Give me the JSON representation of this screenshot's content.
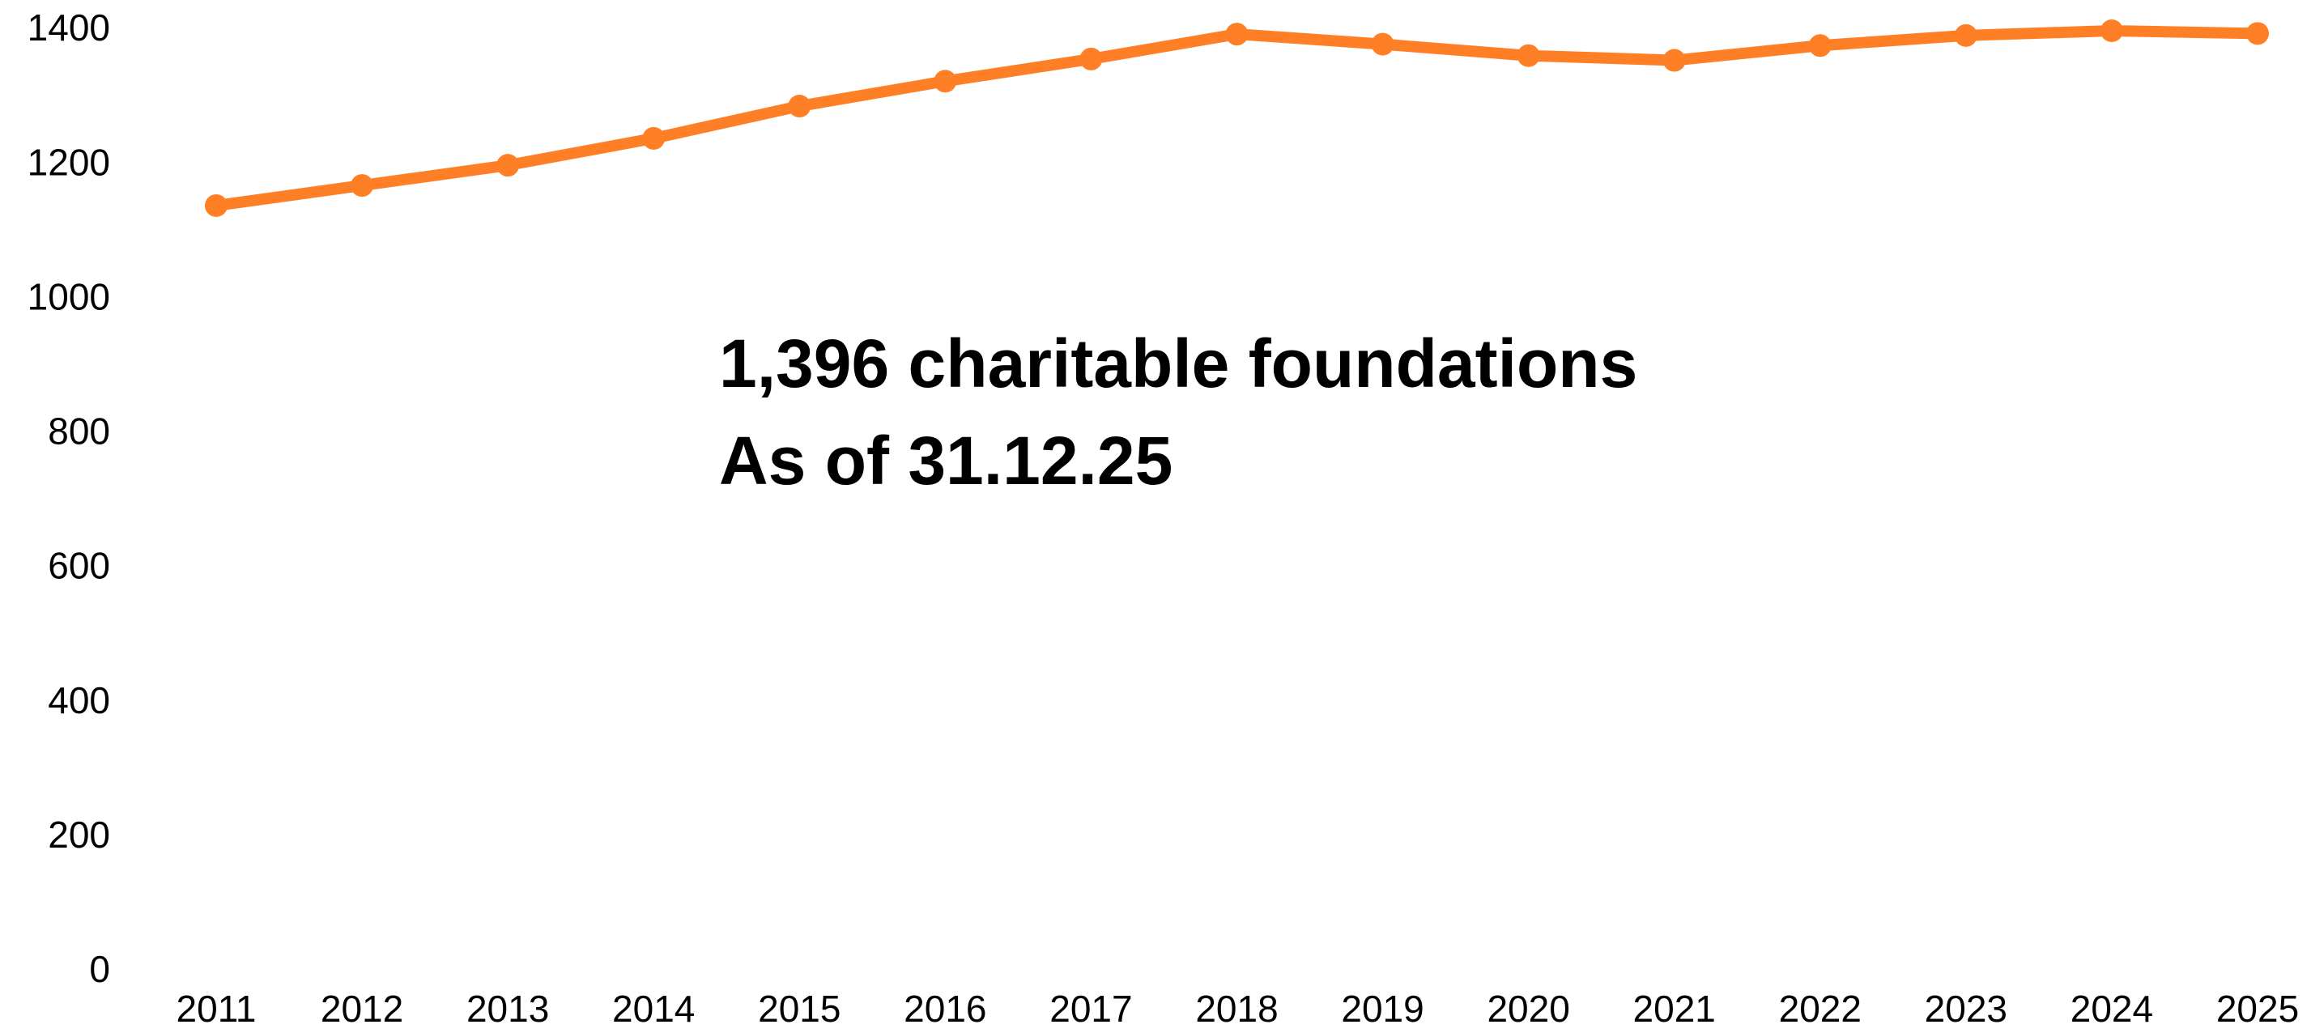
{
  "chart_data": {
    "type": "line",
    "categories": [
      "2011",
      "2012",
      "2013",
      "2014",
      "2015",
      "2016",
      "2017",
      "2018",
      "2019",
      "2020",
      "2021",
      "2022",
      "2023",
      "2024",
      "2025"
    ],
    "series": [
      {
        "color": "#ff7f27",
        "values": [
          1140,
          1170,
          1200,
          1240,
          1288,
          1325,
          1358,
          1395,
          1380,
          1363,
          1356,
          1378,
          1393,
          1400,
          1396
        ]
      }
    ],
    "ylim": [
      0,
      1400
    ],
    "yticks": [
      0,
      200,
      400,
      600,
      800,
      1000,
      1200,
      1400
    ],
    "grid": false,
    "annotation": [
      "1,396 charitable foundations",
      "As of 31.12.25"
    ]
  }
}
